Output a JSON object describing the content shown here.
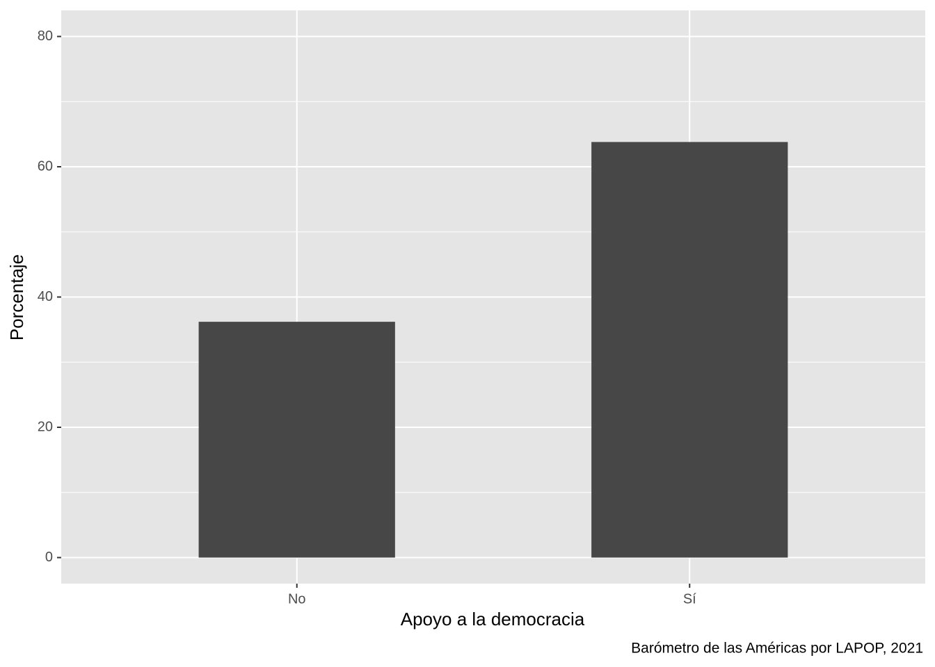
{
  "chart_data": {
    "type": "bar",
    "categories": [
      "No",
      "Sí"
    ],
    "values": [
      36.2,
      63.8
    ],
    "color": "#474747",
    "xlabel": "Apoyo a la democracia",
    "ylabel": "Porcentaje",
    "caption": "Barómetro de las Américas por LAPOP, 2021",
    "ylim": [
      -4,
      84
    ],
    "yticks": [
      0,
      20,
      40,
      60,
      80
    ],
    "grid": true
  }
}
